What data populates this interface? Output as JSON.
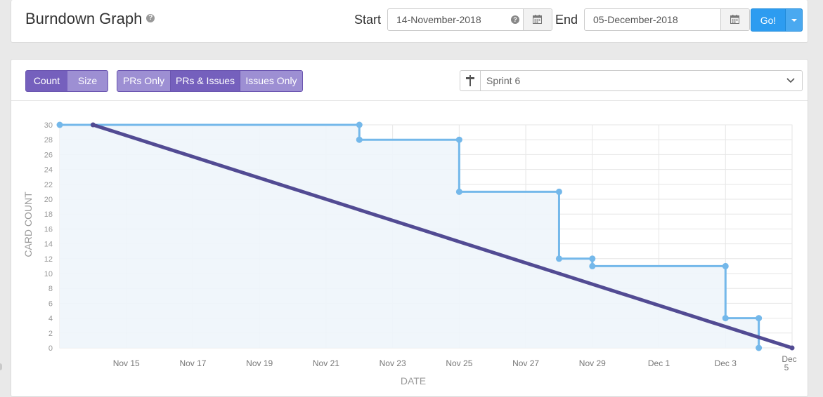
{
  "header": {
    "title": "Burndown Graph",
    "start_label": "Start",
    "start_date": "14-November-2018",
    "end_label": "End",
    "end_date": "05-December-2018",
    "go_label": "Go!"
  },
  "toolbar": {
    "count_label": "Count",
    "size_label": "Size",
    "prs_only_label": "PRs Only",
    "prs_issues_label": "PRs & Issues",
    "issues_only_label": "Issues Only",
    "sprint": "Sprint 6"
  },
  "colors": {
    "accent": "#7560bd",
    "go_button": "#2d9cf0",
    "actual_line": "#74b8ea",
    "ideal_line": "#524b93"
  },
  "chart_data": {
    "type": "line",
    "xlabel": "DATE",
    "ylabel": "CARD COUNT",
    "ylim": [
      0,
      30
    ],
    "xlim": [
      "2018-11-13",
      "2018-12-05"
    ],
    "y_ticks": [
      "0",
      "2",
      "4",
      "6",
      "8",
      "10",
      "12",
      "14",
      "16",
      "18",
      "20",
      "22",
      "24",
      "26",
      "28",
      "30"
    ],
    "x_ticks": [
      "Nov 15",
      "Nov 17",
      "Nov 19",
      "Nov 21",
      "Nov 23",
      "Nov 25",
      "Nov 27",
      "Nov 29",
      "Dec 1",
      "Dec 3",
      "Dec 5"
    ],
    "grid": true,
    "series": [
      {
        "type": "step-area",
        "points": [
          [
            "2018-11-13",
            30
          ],
          [
            "2018-11-22",
            30
          ],
          [
            "2018-11-22",
            28
          ],
          [
            "2018-11-25",
            28
          ],
          [
            "2018-11-25",
            21
          ],
          [
            "2018-11-28",
            21
          ],
          [
            "2018-11-28",
            12
          ],
          [
            "2018-11-29",
            12
          ],
          [
            "2018-11-29",
            11
          ],
          [
            "2018-12-03",
            11
          ],
          [
            "2018-12-03",
            4
          ],
          [
            "2018-12-04",
            4
          ],
          [
            "2018-12-04",
            0
          ]
        ]
      },
      {
        "type": "line",
        "points": [
          [
            "2018-11-14",
            30
          ],
          [
            "2018-12-05",
            0
          ]
        ]
      }
    ]
  }
}
